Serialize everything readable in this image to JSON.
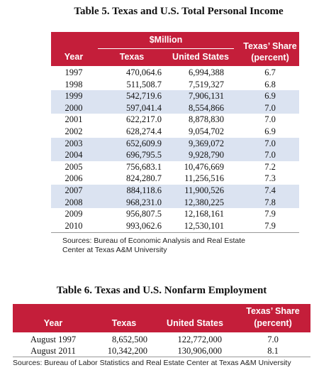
{
  "table5": {
    "title": "Table 5. Texas and U.S. Total Personal Income",
    "group_header": "$Million",
    "headers": [
      "Year",
      "Texas",
      "United States"
    ],
    "share_header": [
      "Texas’ Share",
      "(percent)"
    ],
    "rows": [
      [
        "1997",
        "470,064.6",
        "6,994,388",
        "6.7"
      ],
      [
        "1998",
        "511,508.7",
        "7,519,327",
        "6.8"
      ],
      [
        "1999",
        "542,719.6",
        "7,906,131",
        "6.9"
      ],
      [
        "2000",
        "597,041.4",
        "8,554,866",
        "7.0"
      ],
      [
        "2001",
        "622,217.0",
        "8,878,830",
        "7.0"
      ],
      [
        "2002",
        "628,274.4",
        "9,054,702",
        "6.9"
      ],
      [
        "2003",
        "652,609.9",
        "9,369,072",
        "7.0"
      ],
      [
        "2004",
        "696,795.5",
        "9,928,790",
        "7.0"
      ],
      [
        "2005",
        "756,683.1",
        "10,476,669",
        "7.2"
      ],
      [
        "2006",
        "824,280.7",
        "11,256,516",
        "7.3"
      ],
      [
        "2007",
        "884,118.6",
        "11,900,526",
        "7.4"
      ],
      [
        "2008",
        "968,231.0",
        "12,380,225",
        "7.8"
      ],
      [
        "2009",
        "956,807.5",
        "12,168,161",
        "7.9"
      ],
      [
        "2010",
        "993,062.6",
        "12,530,101",
        "7.9"
      ]
    ],
    "source": "Sources: Bureau of Economic Analysis and Real Estate Center at Texas A&M University"
  },
  "table6": {
    "title": "Table 6. Texas and U.S. Nonfarm Employment",
    "headers": [
      "Year",
      "Texas",
      "United States"
    ],
    "share_header": [
      "Texas’ Share",
      "(percent)"
    ],
    "rows": [
      [
        "August 1997",
        "8,652,500",
        "122,772,000",
        "7.0"
      ],
      [
        "August 2011",
        "10,342,200",
        "130,906,000",
        "8.1"
      ]
    ],
    "source": "Sources: Bureau of Labor Statistics and Real Estate Center at Texas A&M University"
  }
}
